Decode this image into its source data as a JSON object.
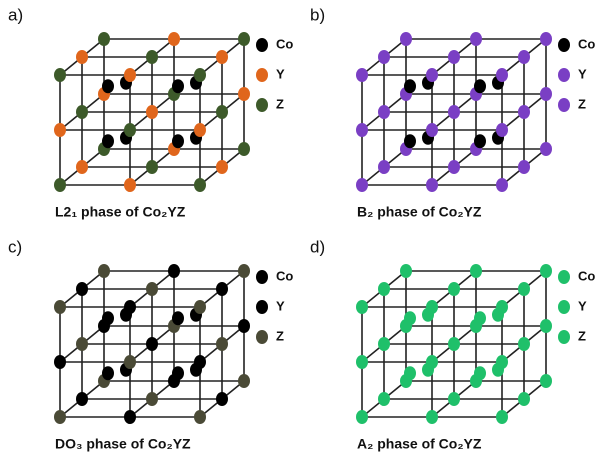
{
  "panels": [
    {
      "label": "a)",
      "caption": "L2₁ phase of Co₂YZ",
      "legend": [
        {
          "name": "Co",
          "color": "#000000"
        },
        {
          "name": "Y",
          "color": "#e0661c"
        },
        {
          "name": "Z",
          "color": "#3d5a2a"
        }
      ]
    },
    {
      "label": "b)",
      "caption": "B₂ phase of Co₂YZ",
      "legend": [
        {
          "name": "Co",
          "color": "#000000"
        },
        {
          "name": "Y",
          "color": "#7a3fc4"
        },
        {
          "name": "Z",
          "color": "#7a3fc4"
        }
      ]
    },
    {
      "label": "c)",
      "caption": "DO₃ phase of Co₂YZ",
      "legend": [
        {
          "name": "Co",
          "color": "#000000"
        },
        {
          "name": "Y",
          "color": "#000000"
        },
        {
          "name": "Z",
          "color": "#4a4a36"
        }
      ]
    },
    {
      "label": "d)",
      "caption": "A₂ phase of Co₂YZ",
      "legend": [
        {
          "name": "Co",
          "color": "#1fc06a"
        },
        {
          "name": "Y",
          "color": "#1fc06a"
        },
        {
          "name": "Z",
          "color": "#1fc06a"
        }
      ]
    }
  ]
}
